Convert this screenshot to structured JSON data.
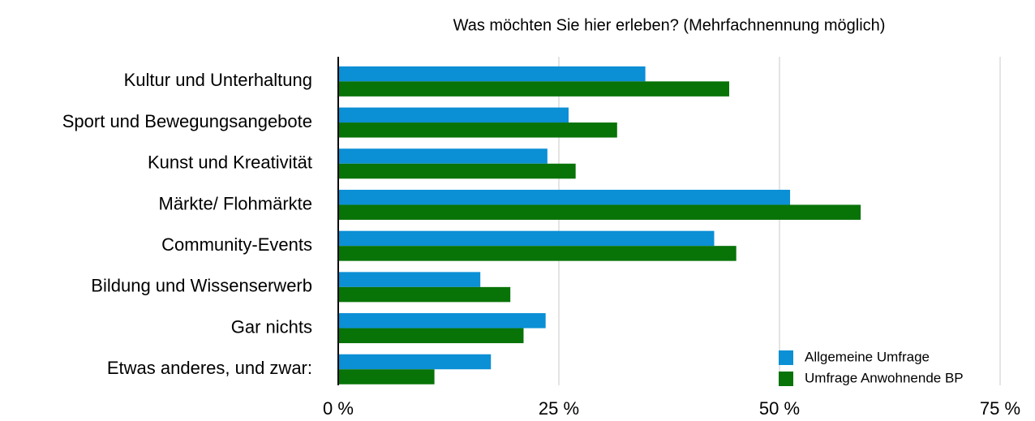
{
  "chart_data": {
    "type": "bar",
    "orientation": "horizontal",
    "title": "Was möchten Sie hier erleben? (Mehrfachnennung möglich)",
    "categories": [
      "Kultur und Unterhaltung",
      "Sport und Bewegungsangebote",
      "Kunst und Kreativität",
      "Märkte/ Flohmärkte",
      "Community-Events",
      "Bildung und Wissenserwerb",
      "Gar nichts",
      "Etwas anderes, und zwar:"
    ],
    "series": [
      {
        "name": "Allgemeine Umfrage",
        "color": "#0b8fd5",
        "values": [
          34.8,
          26.1,
          23.7,
          51.2,
          42.6,
          16.1,
          23.5,
          17.3
        ]
      },
      {
        "name": "Umfrage Anwohnende BP",
        "color": "#087307",
        "values": [
          44.3,
          31.6,
          26.9,
          59.2,
          45.1,
          19.5,
          21.0,
          10.9
        ]
      }
    ],
    "xlim": [
      0,
      75
    ],
    "xticks": [
      {
        "value": 0,
        "label": "0 %"
      },
      {
        "value": 25,
        "label": "25 %"
      },
      {
        "value": 50,
        "label": "50 %"
      },
      {
        "value": 75,
        "label": "75 %"
      }
    ],
    "grid": true,
    "legend": "bottom-right"
  }
}
